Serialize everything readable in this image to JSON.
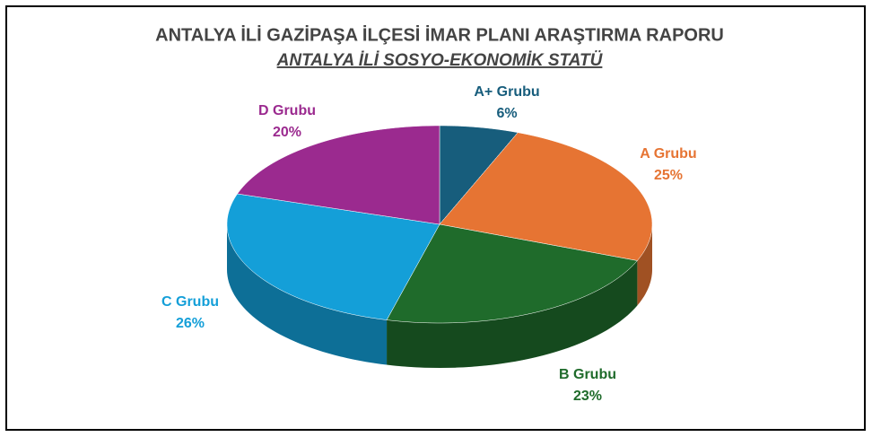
{
  "chart_data": {
    "type": "pie",
    "title": "ANTALYA İLİ GAZİPAŞA İLÇESİ İMAR PLANI ARAŞTIRMA RAPORU",
    "subtitle": "ANTALYA İLİ SOSYO-EKONOMİK STATÜ",
    "categories": [
      "A+ Grubu",
      "A Grubu",
      "B Grubu",
      "C Grubu",
      "D Grubu"
    ],
    "values": [
      6,
      25,
      23,
      26,
      20
    ],
    "value_labels": [
      "6%",
      "25%",
      "23%",
      "26%",
      "20%"
    ],
    "colors": [
      "#175d7c",
      "#e67433",
      "#1f6b2b",
      "#149fd8",
      "#9b2a8f"
    ]
  }
}
